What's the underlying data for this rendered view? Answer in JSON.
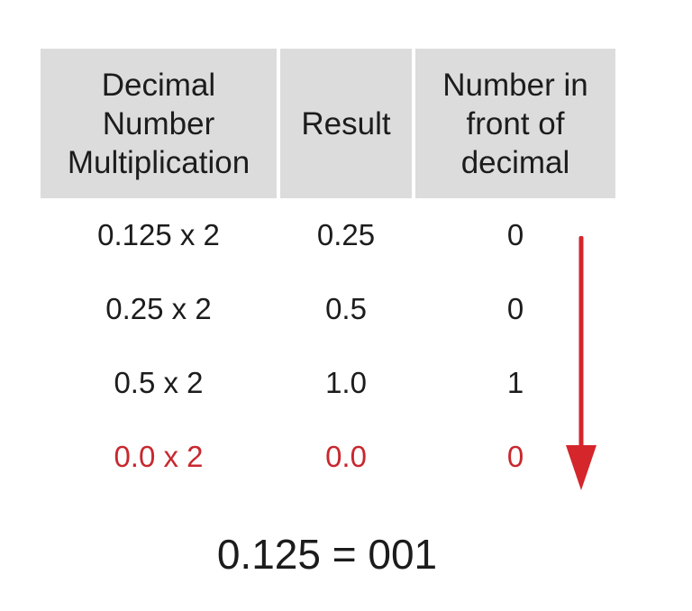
{
  "table": {
    "headers": [
      "Decimal\nNumber\nMultiplication",
      "Result",
      "Number in\nfront of\ndecimal"
    ],
    "rows": [
      {
        "multiplication": "0.125 x 2",
        "result": "0.25",
        "digit": "0"
      },
      {
        "multiplication": "0.25 x 2",
        "result": "0.5",
        "digit": "0"
      },
      {
        "multiplication": "0.5 x 2",
        "result": "1.0",
        "digit": "1"
      },
      {
        "multiplication": "0.0 x 2",
        "result": "0.0",
        "digit": "0"
      }
    ]
  },
  "equation": "0.125 = 001",
  "colors": {
    "header_bg": "#dcdcdc",
    "highlight": "#c8282e",
    "arrow": "#d4262b"
  }
}
